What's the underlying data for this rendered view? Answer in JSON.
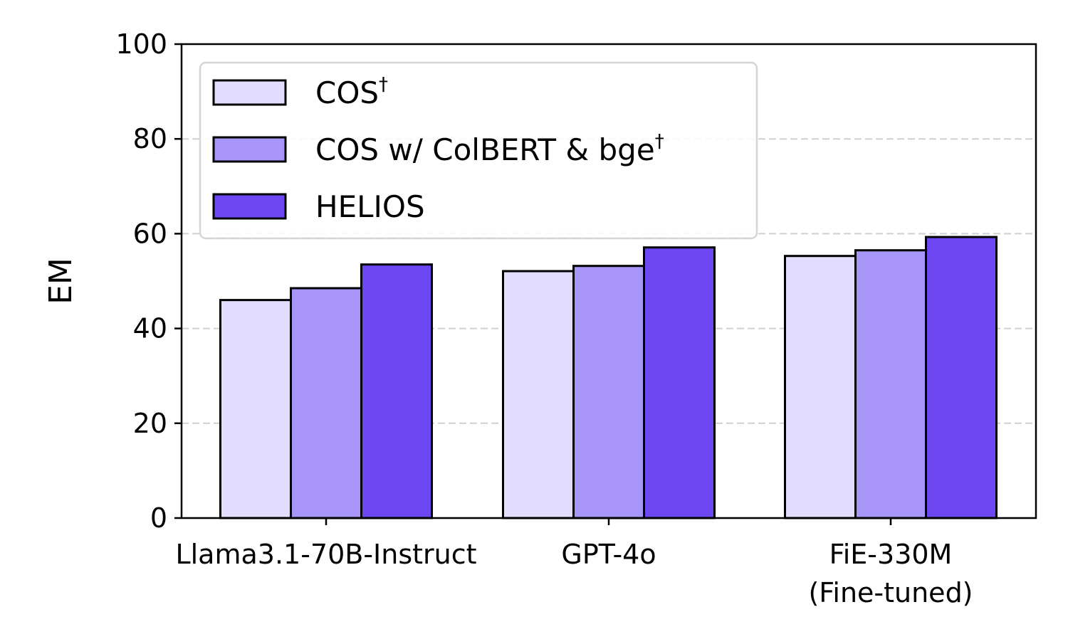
{
  "chart_data": {
    "type": "bar",
    "title": "",
    "xlabel": "",
    "ylabel": "EM",
    "ylim": [
      0,
      100
    ],
    "yticks": [
      0,
      20,
      40,
      60,
      80,
      100
    ],
    "grid": "horizontal dashed",
    "legend_position": "upper left",
    "categories": [
      "Llama3.1-70B-Instruct",
      "GPT-4o",
      "FiE-330M\n(Fine-tuned)"
    ],
    "category_lines": [
      [
        "Llama3.1-70B-Instruct"
      ],
      [
        "GPT-4o"
      ],
      [
        "FiE-330M",
        "(Fine-tuned)"
      ]
    ],
    "series": [
      {
        "name": "COS†",
        "label": "COS",
        "sup": "†",
        "color": "#e2ddfe",
        "values": [
          46.0,
          52.1,
          55.3
        ]
      },
      {
        "name": "COS w/ ColBERT & bge†",
        "label": "COS w/ ColBERT & bge",
        "sup": "†",
        "color": "#a795f7",
        "values": [
          48.5,
          53.2,
          56.5
        ]
      },
      {
        "name": "HELIOS",
        "label": "HELIOS",
        "sup": "",
        "color": "#6d48f2",
        "values": [
          53.5,
          57.1,
          59.3
        ]
      }
    ]
  }
}
